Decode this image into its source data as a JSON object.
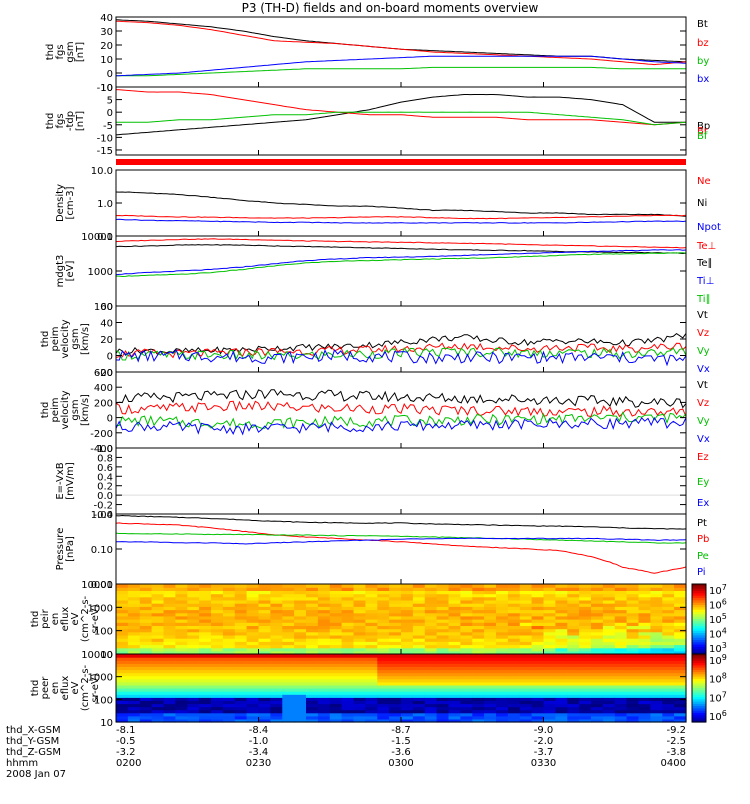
{
  "title": "P3 (TH-D) fields and on-board moments overview",
  "colors": {
    "black": "#000000",
    "red": "#ff0000",
    "green": "#00e000",
    "blue": "#0000ff"
  },
  "footer": {
    "rows": [
      "thd_X-GSM",
      "thd_Y-GSM",
      "thd_Z-GSM",
      "hhmm",
      "2008 Jan 07"
    ],
    "ticks": [
      {
        "x": "-8.1",
        "y": "-0.5",
        "z": "-3.2",
        "t": "0200"
      },
      {
        "x": "-8.4",
        "y": "-1.0",
        "z": "-3.4",
        "t": "0230"
      },
      {
        "x": "-8.7",
        "y": "-1.5",
        "z": "-3.6",
        "t": "0300"
      },
      {
        "x": "-9.0",
        "y": "-2.0",
        "z": "-3.7",
        "t": "0330"
      },
      {
        "x": "-9.2",
        "y": "-2.5",
        "z": "-3.8",
        "t": "0400"
      }
    ]
  },
  "chart_data": [
    {
      "type": "line",
      "ylabel": [
        "thd",
        "fgs",
        "gsm",
        "[nT]"
      ],
      "ylim": [
        -10,
        40
      ],
      "yticks": [
        "40",
        "30",
        "20",
        "10",
        "0",
        "-10"
      ],
      "legend": [
        {
          "label": "Bt",
          "color": "#000000"
        },
        {
          "label": "bz",
          "color": "#ff0000"
        },
        {
          "label": "by",
          "color": "#00c000"
        },
        {
          "label": "bx",
          "color": "#0000ff"
        }
      ],
      "series": [
        {
          "name": "Bt",
          "color": "#000000",
          "values": [
            38,
            37,
            35,
            33,
            30,
            26,
            23,
            21,
            19,
            17,
            16,
            15,
            14,
            13,
            12,
            12,
            10,
            9,
            8
          ]
        },
        {
          "name": "bz",
          "color": "#ff0000",
          "values": [
            37,
            36,
            34,
            31,
            27,
            23,
            22,
            21,
            19,
            17,
            15,
            14,
            13,
            12,
            11,
            10,
            8,
            6,
            8
          ]
        },
        {
          "name": "by",
          "color": "#00c000",
          "values": [
            -2,
            -2,
            -1,
            0,
            1,
            2,
            3,
            3,
            3,
            3,
            4,
            4,
            4,
            4,
            4,
            4,
            3,
            3,
            3
          ]
        },
        {
          "name": "bx",
          "color": "#0000ff",
          "values": [
            -2,
            -1,
            0,
            2,
            4,
            6,
            8,
            9,
            10,
            11,
            12,
            12,
            12,
            12,
            12,
            12,
            10,
            8,
            7
          ]
        }
      ]
    },
    {
      "type": "line",
      "ylabel": [
        "thd",
        "fgs",
        "-tdp",
        "[nT]"
      ],
      "ylim": [
        -17,
        10
      ],
      "yticks": [
        "10",
        "5",
        "0",
        "-5",
        "-10",
        "-15"
      ],
      "legend": [
        {
          "label": "Bp",
          "color": "#000000"
        },
        {
          "label": "Br",
          "color": "#ff0000"
        },
        {
          "label": "Bf",
          "color": "#00c000"
        }
      ],
      "series": [
        {
          "name": "Bp",
          "color": "#000000",
          "values": [
            -9,
            -8,
            -7,
            -6,
            -5,
            -4,
            -3,
            -1,
            1,
            4,
            6,
            7,
            7,
            6,
            6,
            5,
            3,
            -4,
            -4
          ]
        },
        {
          "name": "Br",
          "color": "#ff0000",
          "values": [
            9,
            8,
            8,
            7,
            5,
            3,
            1,
            0,
            -1,
            -1,
            -2,
            -2,
            -2,
            -3,
            -3,
            -3,
            -4,
            -5,
            -4
          ]
        },
        {
          "name": "Bf",
          "color": "#00c000",
          "values": [
            -4,
            -4,
            -3,
            -3,
            -2,
            -1,
            -1,
            0,
            0,
            0,
            0,
            0,
            0,
            0,
            -1,
            -2,
            -3,
            -5,
            -4
          ]
        }
      ]
    },
    {
      "type": "line",
      "ylabel": [
        "Density",
        "[cm-3]"
      ],
      "log": true,
      "ylim": [
        0.1,
        10
      ],
      "yticks": [
        "10.0",
        "1.0",
        "0.1"
      ],
      "legend": [
        {
          "label": "Ne",
          "color": "#ff0000"
        },
        {
          "label": "Ni",
          "color": "#000000"
        },
        {
          "label": "Npot",
          "color": "#0000ff"
        }
      ],
      "series": [
        {
          "name": "Ni",
          "color": "#000000",
          "values": [
            2.2,
            2.0,
            1.8,
            1.5,
            1.2,
            1.0,
            0.9,
            0.8,
            0.8,
            0.7,
            0.6,
            0.6,
            0.55,
            0.5,
            0.5,
            0.45,
            0.45,
            0.45,
            0.4
          ]
        },
        {
          "name": "Ne",
          "color": "#ff0000",
          "values": [
            0.42,
            0.4,
            0.38,
            0.37,
            0.36,
            0.35,
            0.35,
            0.36,
            0.38,
            0.38,
            0.36,
            0.34,
            0.34,
            0.35,
            0.36,
            0.38,
            0.4,
            0.42,
            0.42
          ]
        },
        {
          "name": "Npot",
          "color": "#0000ff",
          "values": [
            0.32,
            0.3,
            0.29,
            0.28,
            0.27,
            0.26,
            0.26,
            0.25,
            0.25,
            0.25,
            0.25,
            0.25,
            0.25,
            0.25,
            0.25,
            0.26,
            0.27,
            0.28,
            0.28
          ]
        }
      ]
    },
    {
      "type": "line",
      "ylabel": [
        "mdgt3",
        "[eV]"
      ],
      "log": true,
      "ylim": [
        100,
        10000
      ],
      "yticks": [
        "10000",
        "1000",
        "100"
      ],
      "legend": [
        {
          "label": "Te⊥",
          "color": "#ff0000"
        },
        {
          "label": "Te∥",
          "color": "#000000"
        },
        {
          "label": "Ti⊥",
          "color": "#0000ff"
        },
        {
          "label": "Ti∥",
          "color": "#00c000"
        }
      ],
      "series": [
        {
          "name": "Te⊥",
          "color": "#ff0000",
          "values": [
            7000,
            7500,
            8000,
            8200,
            8000,
            7600,
            7200,
            7000,
            6800,
            6600,
            6400,
            6200,
            6000,
            5600,
            5400,
            5200,
            5000,
            4800,
            4600
          ]
        },
        {
          "name": "Te∥",
          "color": "#000000",
          "values": [
            5000,
            5200,
            5500,
            5600,
            5500,
            5200,
            5000,
            4800,
            4600,
            4400,
            4200,
            4000,
            3900,
            3800,
            3600,
            3500,
            3400,
            3300,
            3200
          ]
        },
        {
          "name": "Ti⊥",
          "color": "#0000ff",
          "values": [
            800,
            900,
            1000,
            1100,
            1300,
            1600,
            2000,
            2200,
            2400,
            2500,
            2600,
            2800,
            3000,
            3200,
            3400,
            3600,
            3800,
            4000,
            4000
          ]
        },
        {
          "name": "Ti∥",
          "color": "#00c000",
          "values": [
            700,
            750,
            800,
            900,
            1100,
            1400,
            1700,
            1900,
            2000,
            2100,
            2200,
            2300,
            2400,
            2600,
            2800,
            3000,
            3100,
            3200,
            3300
          ]
        }
      ]
    },
    {
      "type": "line",
      "ylabel": [
        "thd",
        "peim",
        "velocity",
        "gsm",
        "[km/s]"
      ],
      "ylim": [
        -20,
        60
      ],
      "yticks": [
        "60",
        "40",
        "20",
        "0",
        "-20"
      ],
      "legend": [
        {
          "label": "Vt",
          "color": "#000000"
        },
        {
          "label": "Vz",
          "color": "#ff0000"
        },
        {
          "label": "Vy",
          "color": "#00c000"
        },
        {
          "label": "Vx",
          "color": "#0000ff"
        }
      ],
      "series": [
        {
          "name": "Vt",
          "color": "#000000",
          "values": [
            5,
            6,
            5,
            6,
            7,
            9,
            10,
            11,
            13,
            16,
            20,
            22,
            18,
            16,
            18,
            17,
            15,
            18,
            25
          ]
        },
        {
          "name": "Vz",
          "color": "#ff0000",
          "values": [
            2,
            3,
            2,
            3,
            4,
            5,
            5,
            6,
            7,
            8,
            10,
            12,
            10,
            8,
            10,
            9,
            8,
            10,
            12
          ]
        },
        {
          "name": "Vy",
          "color": "#00c000",
          "values": [
            0,
            1,
            0,
            1,
            0,
            -1,
            0,
            1,
            2,
            3,
            4,
            5,
            4,
            3,
            4,
            3,
            2,
            3,
            5
          ]
        },
        {
          "name": "Vx",
          "color": "#0000ff",
          "values": [
            0,
            -1,
            0,
            -1,
            -2,
            -3,
            -1,
            0,
            -1,
            -2,
            -3,
            -2,
            -3,
            -2,
            -3,
            -2,
            -3,
            -4,
            -6
          ]
        }
      ]
    },
    {
      "type": "line",
      "ylabel": [
        "thd",
        "peim",
        "velocity",
        "gsm",
        "[km/s]"
      ],
      "ylim": [
        -400,
        600
      ],
      "yticks": [
        "600",
        "400",
        "200",
        "0",
        "-200",
        "-400"
      ],
      "legend": [
        {
          "label": "Vt",
          "color": "#000000"
        },
        {
          "label": "Vz",
          "color": "#ff0000"
        },
        {
          "label": "Vy",
          "color": "#00c000"
        },
        {
          "label": "Vx",
          "color": "#0000ff"
        }
      ],
      "series": [
        {
          "name": "Vt",
          "color": "#000000",
          "values": [
            250,
            260,
            270,
            280,
            300,
            320,
            300,
            290,
            280,
            270,
            260,
            250,
            250,
            240,
            230,
            220,
            210,
            200,
            200
          ]
        },
        {
          "name": "Vz",
          "color": "#ff0000",
          "values": [
            120,
            110,
            130,
            140,
            150,
            140,
            130,
            120,
            120,
            110,
            100,
            100,
            90,
            90,
            80,
            80,
            80,
            70,
            70
          ]
        },
        {
          "name": "Vy",
          "color": "#00c000",
          "values": [
            -50,
            -40,
            -60,
            -70,
            -80,
            -70,
            -60,
            -50,
            -50,
            -40,
            -40,
            -30,
            -30,
            -20,
            -20,
            -10,
            0,
            0,
            0
          ]
        },
        {
          "name": "Vx",
          "color": "#0000ff",
          "values": [
            -120,
            -110,
            -130,
            -140,
            -150,
            -140,
            -130,
            -120,
            -120,
            -110,
            -100,
            -100,
            -90,
            -90,
            -80,
            -80,
            -70,
            -70,
            -60
          ]
        }
      ]
    },
    {
      "type": "line",
      "ylabel": [
        "E=-VxB",
        "[mV/m]"
      ],
      "ylim": [
        -0.4,
        1.0
      ],
      "yticks": [
        "1.0",
        "0.8",
        "0.6",
        "0.4",
        "0.2",
        "0.0",
        "-0.2",
        "-0.4"
      ],
      "legend": [
        {
          "label": "Ez",
          "color": "#ff0000"
        },
        {
          "label": "Ey",
          "color": "#00c000"
        },
        {
          "label": "Ex",
          "color": "#0000ff"
        }
      ],
      "series": []
    },
    {
      "type": "line",
      "ylabel": [
        "Pressure",
        "[nPa]"
      ],
      "log": true,
      "ylim": [
        0.01,
        1.0
      ],
      "yticks": [
        "1.00",
        "0.10",
        "0.01"
      ],
      "legend": [
        {
          "label": "Pt",
          "color": "#000000"
        },
        {
          "label": "Pb",
          "color": "#ff0000"
        },
        {
          "label": "Pe",
          "color": "#00c000"
        },
        {
          "label": "Pi",
          "color": "#0000ff"
        }
      ],
      "series": [
        {
          "name": "Pt",
          "color": "#000000",
          "values": [
            0.9,
            0.85,
            0.8,
            0.75,
            0.68,
            0.62,
            0.58,
            0.56,
            0.55,
            0.55,
            0.52,
            0.5,
            0.48,
            0.46,
            0.45,
            0.43,
            0.4,
            0.38,
            0.37
          ]
        },
        {
          "name": "Pb",
          "color": "#ff0000",
          "values": [
            0.55,
            0.52,
            0.48,
            0.4,
            0.32,
            0.25,
            0.22,
            0.2,
            0.18,
            0.16,
            0.14,
            0.12,
            0.11,
            0.1,
            0.09,
            0.06,
            0.03,
            0.02,
            0.03
          ]
        },
        {
          "name": "Pe",
          "color": "#00c000",
          "values": [
            0.28,
            0.27,
            0.27,
            0.26,
            0.26,
            0.25,
            0.25,
            0.24,
            0.24,
            0.23,
            0.22,
            0.21,
            0.2,
            0.19,
            0.18,
            0.17,
            0.16,
            0.15,
            0.15
          ]
        },
        {
          "name": "Pi",
          "color": "#0000ff",
          "values": [
            0.16,
            0.16,
            0.15,
            0.15,
            0.14,
            0.15,
            0.16,
            0.17,
            0.18,
            0.19,
            0.2,
            0.2,
            0.2,
            0.2,
            0.2,
            0.2,
            0.19,
            0.18,
            0.18
          ]
        }
      ]
    },
    {
      "type": "heatmap",
      "ylabel": [
        "thd",
        "peir",
        "en",
        "eflux",
        "eV",
        "(cm^2-s-",
        "sr-eV)"
      ],
      "log": true,
      "ylim": [
        10,
        10000
      ],
      "yticks": [
        "10000",
        "1000",
        "100",
        "10"
      ],
      "colorbar": [
        "10^7",
        "10^6",
        "10^5",
        "10^4",
        "10^3"
      ]
    },
    {
      "type": "heatmap",
      "ylabel": [
        "thd",
        "peer",
        "en",
        "eflux",
        "eV",
        "(cm^2-s-",
        "sr-eV)"
      ],
      "log": true,
      "ylim": [
        10,
        10000
      ],
      "yticks": [
        "10000",
        "1000",
        "100",
        "10"
      ],
      "colorbar": [
        "10^9",
        "10^8",
        "10^7",
        "10^6"
      ]
    }
  ]
}
